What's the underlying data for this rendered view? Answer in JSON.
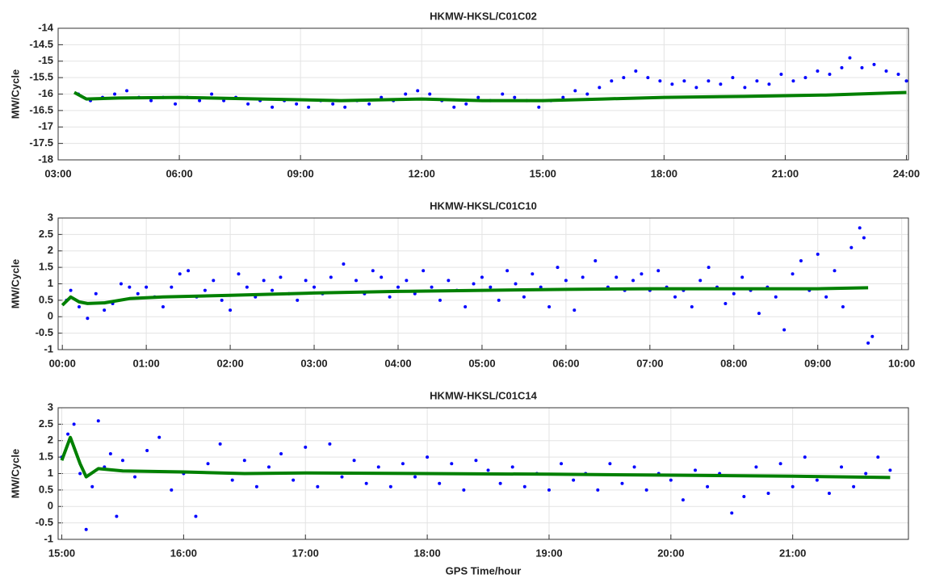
{
  "chart_data": [
    {
      "type": "scatter",
      "title": "HKMW-HKSL/C01C02",
      "ylabel": "MW/Cycle",
      "xlim": [
        3,
        24.05
      ],
      "ylim": [
        -18,
        -14
      ],
      "grid": true,
      "xticks": [
        {
          "value": 3,
          "label": "03:00"
        },
        {
          "value": 6,
          "label": "06:00"
        },
        {
          "value": 9,
          "label": "09:00"
        },
        {
          "value": 12,
          "label": "12:00"
        },
        {
          "value": 15,
          "label": "15:00"
        },
        {
          "value": 18,
          "label": "18:00"
        },
        {
          "value": 21,
          "label": "21:00"
        },
        {
          "value": 24,
          "label": "24:00"
        }
      ],
      "yticks": [
        -18,
        -17.5,
        -17,
        -16.5,
        -16,
        -15.5,
        -15,
        -14.5,
        -14
      ],
      "series": [
        {
          "style": "dots",
          "color": "#0000ff",
          "x": [
            3.5,
            3.8,
            4.1,
            4.4,
            4.7,
            5.0,
            5.3,
            5.6,
            5.9,
            6.2,
            6.5,
            6.8,
            7.1,
            7.4,
            7.7,
            8.0,
            8.3,
            8.6,
            8.9,
            9.2,
            9.5,
            9.8,
            10.1,
            10.4,
            10.7,
            11.0,
            11.3,
            11.6,
            11.9,
            12.2,
            12.5,
            12.8,
            13.1,
            13.4,
            13.7,
            14.0,
            14.3,
            14.6,
            14.9,
            15.2,
            15.5,
            15.8,
            16.1,
            16.4,
            16.7,
            17.0,
            17.3,
            17.6,
            17.9,
            18.2,
            18.5,
            18.8,
            19.1,
            19.4,
            19.7,
            20.0,
            20.3,
            20.6,
            20.9,
            21.2,
            21.5,
            21.8,
            22.1,
            22.4,
            22.6,
            22.9,
            23.2,
            23.5,
            23.8,
            24.0
          ],
          "values": [
            -16.0,
            -16.2,
            -16.1,
            -16.0,
            -15.9,
            -16.1,
            -16.2,
            -16.1,
            -16.3,
            -16.1,
            -16.2,
            -16.0,
            -16.2,
            -16.1,
            -16.3,
            -16.2,
            -16.4,
            -16.2,
            -16.3,
            -16.4,
            -16.2,
            -16.3,
            -16.4,
            -16.2,
            -16.3,
            -16.1,
            -16.2,
            -16.0,
            -15.9,
            -16.0,
            -16.2,
            -16.4,
            -16.3,
            -16.1,
            -16.2,
            -16.0,
            -16.1,
            -16.2,
            -16.4,
            -16.2,
            -16.1,
            -15.9,
            -16.0,
            -15.8,
            -15.6,
            -15.5,
            -15.3,
            -15.5,
            -15.6,
            -15.7,
            -15.6,
            -15.8,
            -15.6,
            -15.7,
            -15.5,
            -15.8,
            -15.6,
            -15.7,
            -15.4,
            -15.6,
            -15.5,
            -15.3,
            -15.4,
            -15.2,
            -14.9,
            -15.2,
            -15.1,
            -15.3,
            -15.4,
            -15.6
          ]
        },
        {
          "style": "line",
          "color": "#008000",
          "x": [
            3.4,
            3.7,
            4.5,
            6,
            8,
            10,
            12,
            13.5,
            15,
            16.5,
            18,
            20,
            22,
            24
          ],
          "values": [
            -15.95,
            -16.15,
            -16.12,
            -16.1,
            -16.15,
            -16.2,
            -16.15,
            -16.2,
            -16.2,
            -16.15,
            -16.1,
            -16.07,
            -16.03,
            -15.95
          ]
        }
      ]
    },
    {
      "type": "scatter",
      "title": "HKMW-HKSL/C01C10",
      "ylabel": "MW/Cycle",
      "xlim": [
        -0.05,
        10.08
      ],
      "ylim": [
        -1,
        3
      ],
      "grid": true,
      "xticks": [
        {
          "value": 0,
          "label": "00:00"
        },
        {
          "value": 1,
          "label": "01:00"
        },
        {
          "value": 2,
          "label": "02:00"
        },
        {
          "value": 3,
          "label": "03:00"
        },
        {
          "value": 4,
          "label": "04:00"
        },
        {
          "value": 5,
          "label": "05:00"
        },
        {
          "value": 6,
          "label": "06:00"
        },
        {
          "value": 7,
          "label": "07:00"
        },
        {
          "value": 8,
          "label": "08:00"
        },
        {
          "value": 9,
          "label": "09:00"
        },
        {
          "value": 10,
          "label": "10:00"
        }
      ],
      "yticks": [
        -1,
        -0.5,
        0,
        0.5,
        1,
        1.5,
        2,
        2.5,
        3
      ],
      "series": [
        {
          "style": "dots",
          "color": "#0000ff",
          "x": [
            0.05,
            0.1,
            0.2,
            0.3,
            0.4,
            0.5,
            0.6,
            0.7,
            0.8,
            0.9,
            1.0,
            1.1,
            1.2,
            1.3,
            1.4,
            1.5,
            1.6,
            1.7,
            1.8,
            1.9,
            2.0,
            2.1,
            2.2,
            2.3,
            2.4,
            2.5,
            2.6,
            2.7,
            2.8,
            2.9,
            3.0,
            3.1,
            3.2,
            3.35,
            3.5,
            3.6,
            3.7,
            3.8,
            3.9,
            4.0,
            4.1,
            4.2,
            4.3,
            4.4,
            4.5,
            4.6,
            4.7,
            4.8,
            4.9,
            5.0,
            5.1,
            5.2,
            5.3,
            5.4,
            5.5,
            5.6,
            5.7,
            5.8,
            5.9,
            6.0,
            6.1,
            6.2,
            6.35,
            6.5,
            6.6,
            6.7,
            6.8,
            6.9,
            7.0,
            7.1,
            7.2,
            7.3,
            7.4,
            7.5,
            7.6,
            7.7,
            7.8,
            7.9,
            8.0,
            8.1,
            8.2,
            8.3,
            8.4,
            8.5,
            8.6,
            8.7,
            8.8,
            8.9,
            9.0,
            9.1,
            9.2,
            9.3,
            9.4,
            9.5,
            9.55,
            9.6,
            9.65
          ],
          "values": [
            0.5,
            0.8,
            0.3,
            -0.05,
            0.7,
            0.2,
            0.4,
            1.0,
            0.9,
            0.7,
            0.9,
            0.6,
            0.3,
            0.9,
            1.3,
            1.4,
            0.6,
            0.8,
            1.1,
            0.5,
            0.2,
            1.3,
            0.9,
            0.6,
            1.1,
            0.8,
            1.2,
            0.7,
            0.5,
            1.1,
            0.9,
            0.7,
            1.2,
            1.6,
            1.1,
            0.7,
            1.4,
            1.2,
            0.6,
            0.9,
            1.1,
            0.7,
            1.4,
            0.9,
            0.5,
            1.1,
            0.8,
            0.3,
            1.0,
            1.2,
            0.9,
            0.5,
            1.4,
            1.0,
            0.6,
            1.3,
            0.9,
            0.3,
            1.5,
            1.1,
            0.2,
            1.2,
            1.7,
            0.9,
            1.2,
            0.8,
            1.1,
            1.3,
            0.8,
            1.4,
            0.9,
            0.6,
            0.8,
            0.3,
            1.1,
            1.5,
            0.9,
            0.4,
            0.7,
            1.2,
            0.8,
            0.1,
            0.9,
            0.6,
            -0.4,
            1.3,
            1.7,
            0.8,
            1.9,
            0.6,
            1.4,
            0.3,
            2.1,
            2.7,
            2.4,
            -0.8,
            -0.6
          ]
        },
        {
          "style": "line",
          "color": "#008000",
          "x": [
            0,
            0.1,
            0.2,
            0.3,
            0.5,
            0.8,
            1.2,
            2,
            3,
            4,
            5,
            6,
            7,
            8,
            9,
            9.6
          ],
          "values": [
            0.35,
            0.6,
            0.45,
            0.4,
            0.42,
            0.55,
            0.6,
            0.65,
            0.72,
            0.77,
            0.8,
            0.83,
            0.85,
            0.85,
            0.85,
            0.88
          ]
        }
      ]
    },
    {
      "type": "scatter",
      "title": "HKMW-HKSL/C01C14",
      "ylabel": "MW/Cycle",
      "xlabel": "GPS Time/hour",
      "xlim": [
        14.97,
        21.95
      ],
      "ylim": [
        -1,
        3
      ],
      "grid": true,
      "xticks": [
        {
          "value": 15,
          "label": "15:00"
        },
        {
          "value": 16,
          "label": "16:00"
        },
        {
          "value": 17,
          "label": "17:00"
        },
        {
          "value": 18,
          "label": "18:00"
        },
        {
          "value": 19,
          "label": "19:00"
        },
        {
          "value": 20,
          "label": "20:00"
        },
        {
          "value": 21,
          "label": "21:00"
        }
      ],
      "yticks": [
        -1,
        -0.5,
        0,
        0.5,
        1,
        1.5,
        2,
        2.5,
        3
      ],
      "series": [
        {
          "style": "dots",
          "color": "#0000ff",
          "x": [
            15.0,
            15.05,
            15.1,
            15.15,
            15.2,
            15.25,
            15.3,
            15.35,
            15.4,
            15.45,
            15.5,
            15.6,
            15.7,
            15.8,
            15.9,
            16.0,
            16.1,
            16.2,
            16.3,
            16.4,
            16.5,
            16.6,
            16.7,
            16.8,
            16.9,
            17.0,
            17.1,
            17.2,
            17.3,
            17.4,
            17.5,
            17.6,
            17.7,
            17.8,
            17.9,
            18.0,
            18.1,
            18.2,
            18.3,
            18.4,
            18.5,
            18.6,
            18.7,
            18.8,
            18.9,
            19.0,
            19.1,
            19.2,
            19.3,
            19.4,
            19.5,
            19.6,
            19.7,
            19.8,
            19.9,
            20.0,
            20.1,
            20.2,
            20.3,
            20.4,
            20.5,
            20.6,
            20.7,
            20.8,
            20.9,
            21.0,
            21.1,
            21.2,
            21.3,
            21.4,
            21.5,
            21.6,
            21.7,
            21.8
          ],
          "values": [
            1.5,
            2.2,
            2.5,
            1.0,
            -0.7,
            0.6,
            2.6,
            1.2,
            1.6,
            -0.3,
            1.4,
            0.9,
            1.7,
            2.1,
            0.5,
            1.0,
            -0.3,
            1.3,
            1.9,
            0.8,
            1.4,
            0.6,
            1.2,
            1.6,
            0.8,
            1.8,
            0.6,
            1.9,
            0.9,
            1.4,
            0.7,
            1.2,
            0.6,
            1.3,
            0.9,
            1.5,
            0.7,
            1.3,
            0.5,
            1.4,
            1.1,
            0.7,
            1.2,
            0.6,
            1.0,
            0.5,
            1.3,
            0.8,
            1.0,
            0.5,
            1.3,
            0.7,
            1.2,
            0.5,
            1.0,
            0.8,
            0.2,
            1.1,
            0.6,
            1.0,
            -0.2,
            0.3,
            1.2,
            0.4,
            1.3,
            0.6,
            1.5,
            0.8,
            0.4,
            1.2,
            0.6,
            1.0,
            1.5,
            1.1
          ]
        },
        {
          "style": "line",
          "color": "#008000",
          "x": [
            15.0,
            15.07,
            15.15,
            15.2,
            15.3,
            15.5,
            16,
            16.5,
            17,
            18,
            19,
            20,
            21,
            21.8
          ],
          "values": [
            1.4,
            2.1,
            1.3,
            0.9,
            1.15,
            1.08,
            1.05,
            1.0,
            1.02,
            1.0,
            0.98,
            0.95,
            0.92,
            0.88
          ]
        }
      ]
    }
  ]
}
